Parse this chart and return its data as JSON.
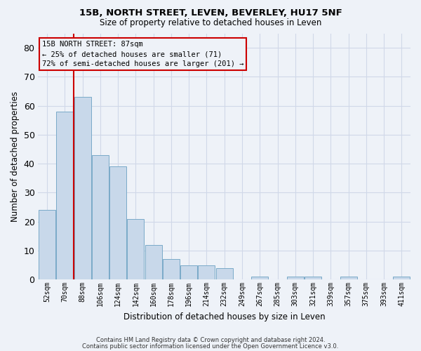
{
  "title1": "15B, NORTH STREET, LEVEN, BEVERLEY, HU17 5NF",
  "title2": "Size of property relative to detached houses in Leven",
  "xlabel": "Distribution of detached houses by size in Leven",
  "ylabel": "Number of detached properties",
  "bar_color": "#c8d8ea",
  "bar_edge_color": "#7aaac8",
  "grid_color": "#d0d8e8",
  "annotation_box_color": "#cc0000",
  "property_line_color": "#cc0000",
  "categories": [
    "52sqm",
    "70sqm",
    "88sqm",
    "106sqm",
    "124sqm",
    "142sqm",
    "160sqm",
    "178sqm",
    "196sqm",
    "214sqm",
    "232sqm",
    "249sqm",
    "267sqm",
    "285sqm",
    "303sqm",
    "321sqm",
    "339sqm",
    "357sqm",
    "375sqm",
    "393sqm",
    "411sqm"
  ],
  "values": [
    24,
    58,
    63,
    43,
    39,
    21,
    12,
    7,
    5,
    5,
    4,
    0,
    1,
    0,
    1,
    1,
    0,
    1,
    0,
    0,
    1
  ],
  "ylim": [
    0,
    85
  ],
  "property_bin_index": 2,
  "annotation_title": "15B NORTH STREET: 87sqm",
  "annotation_line1": "← 25% of detached houses are smaller (71)",
  "annotation_line2": "72% of semi-detached houses are larger (201) →",
  "footer1": "Contains HM Land Registry data © Crown copyright and database right 2024.",
  "footer2": "Contains public sector information licensed under the Open Government Licence v3.0.",
  "bg_color": "#eef2f8",
  "yticks": [
    0,
    10,
    20,
    30,
    40,
    50,
    60,
    70,
    80
  ]
}
